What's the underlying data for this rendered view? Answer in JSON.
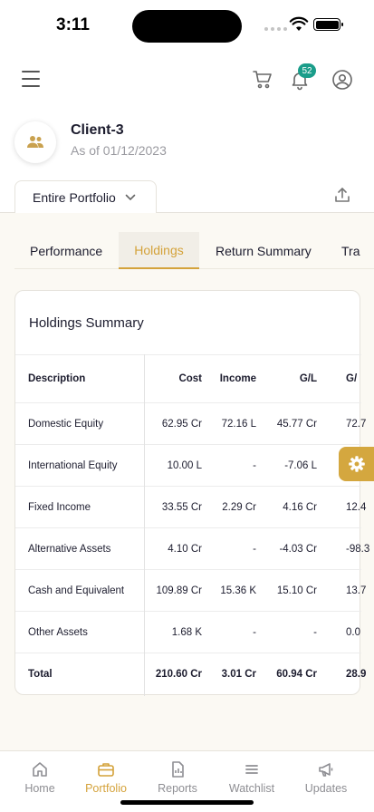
{
  "status_bar": {
    "time": "3:11"
  },
  "header": {
    "notification_count": "52"
  },
  "client": {
    "name": "Client-3",
    "as_of": "As of 01/12/2023"
  },
  "portfolio_selector": {
    "selected": "Entire Portfolio"
  },
  "tabs": [
    {
      "label": "Performance",
      "active": false
    },
    {
      "label": "Holdings",
      "active": true
    },
    {
      "label": "Return Summary",
      "active": false
    },
    {
      "label": "Tra",
      "active": false
    }
  ],
  "holdings": {
    "title": "Holdings Summary",
    "columns": [
      "Description",
      "Cost",
      "Income",
      "G/L",
      "G/"
    ],
    "rows": [
      {
        "description": "Domestic Equity",
        "cost": "62.95 Cr",
        "income": "72.16 L",
        "gl": "45.77 Cr",
        "gl_pct": "72.7"
      },
      {
        "description": "International Equity",
        "cost": "10.00 L",
        "income": "-",
        "gl": "-7.06 L",
        "gl_pct": "-"
      },
      {
        "description": "Fixed Income",
        "cost": "33.55 Cr",
        "income": "2.29 Cr",
        "gl": "4.16 Cr",
        "gl_pct": "12.4"
      },
      {
        "description": "Alternative Assets",
        "cost": "4.10 Cr",
        "income": "-",
        "gl": "-4.03 Cr",
        "gl_pct": "-98.3"
      },
      {
        "description": "Cash and Equivalent",
        "cost": "109.89 Cr",
        "income": "15.36 K",
        "gl": "15.10 Cr",
        "gl_pct": "13.7"
      },
      {
        "description": "Other Assets",
        "cost": "1.68 K",
        "income": "-",
        "gl": "-",
        "gl_pct": "0.0"
      }
    ],
    "total": {
      "description": "Total",
      "cost": "210.60 Cr",
      "income": "3.01 Cr",
      "gl": "60.94 Cr",
      "gl_pct": "28.9"
    }
  },
  "bottom_nav": [
    {
      "label": "Home",
      "icon": "home-icon",
      "active": false
    },
    {
      "label": "Portfolio",
      "icon": "briefcase-icon",
      "active": true
    },
    {
      "label": "Reports",
      "icon": "report-icon",
      "active": false
    },
    {
      "label": "Watchlist",
      "icon": "list-icon",
      "active": false
    },
    {
      "label": "Updates",
      "icon": "megaphone-icon",
      "active": false
    }
  ],
  "colors": {
    "accent": "#d4a23a",
    "badge": "#1a9d8a",
    "content_bg": "#fbf9f3"
  }
}
